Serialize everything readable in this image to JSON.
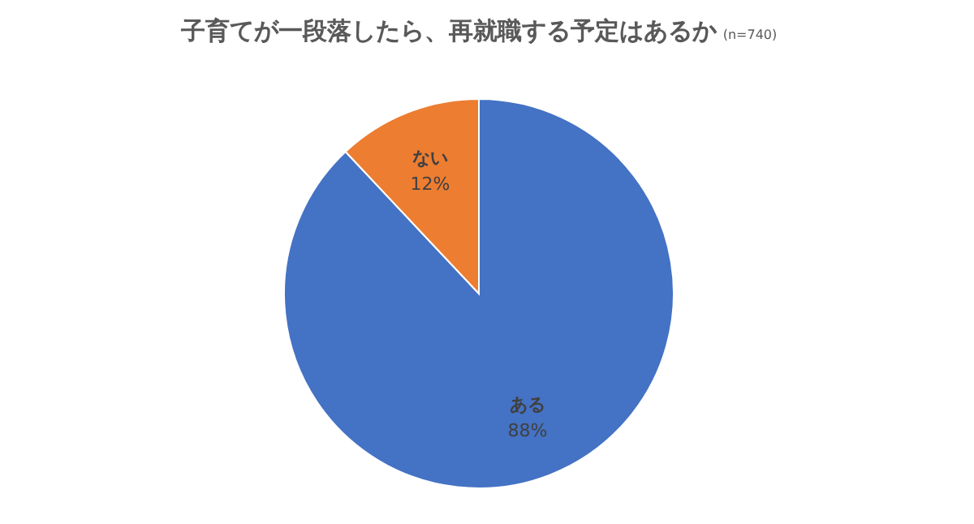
{
  "chart_data": {
    "type": "pie",
    "title": "子育てが一段落したら、再就職する予定はあるか",
    "subtitle": "(n=740)",
    "categories": [
      "ある",
      "ない"
    ],
    "values": [
      88,
      12
    ],
    "colors": [
      "#4472c4",
      "#ed7d31"
    ],
    "value_labels": [
      "88%",
      "12%"
    ]
  }
}
